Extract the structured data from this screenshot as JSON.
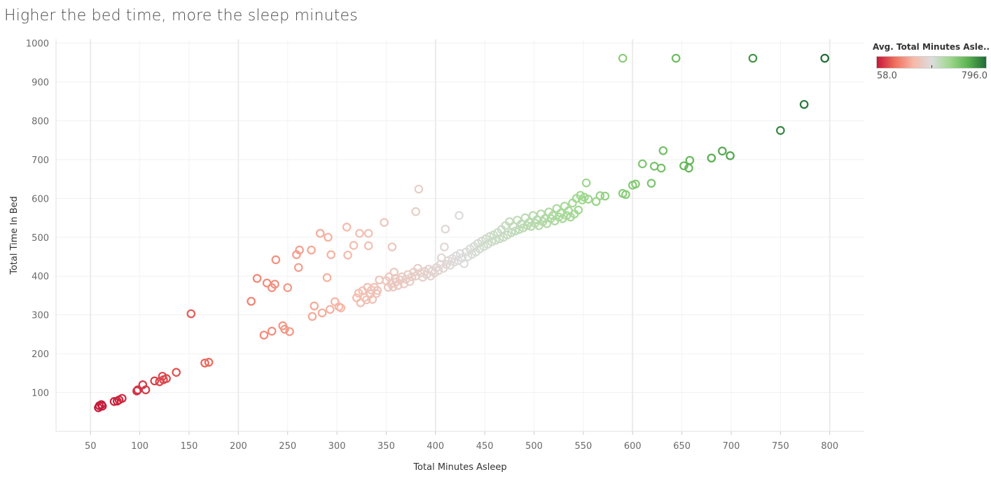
{
  "title": "Higher the bed time, more the sleep minutes",
  "legend": {
    "title": "Avg. Total Minutes Asle..",
    "min_label": "58.0",
    "max_label": "796.0",
    "colors": [
      "#c4183a",
      "#f06f5c",
      "#f7b8a8",
      "#dcdcdc",
      "#9fd88e",
      "#5db352",
      "#1f6b35"
    ]
  },
  "chart_data": {
    "type": "scatter",
    "title": "Higher the bed time, more the sleep minutes",
    "xlabel": "Total Minutes Asleep",
    "ylabel": "Total Time In Bed",
    "xlim": [
      15,
      835
    ],
    "ylim": [
      0,
      1010
    ],
    "xticks": [
      50,
      100,
      150,
      200,
      250,
      300,
      350,
      400,
      450,
      500,
      550,
      600,
      650,
      700,
      750,
      800
    ],
    "yticks": [
      100,
      200,
      300,
      400,
      500,
      600,
      700,
      800,
      900,
      1000
    ],
    "color_by": "Avg. Total Minutes Asleep",
    "color_range": [
      58,
      796
    ],
    "grid": true,
    "legend_position": "top-right",
    "points": [
      [
        58,
        61
      ],
      [
        59,
        66
      ],
      [
        61,
        69
      ],
      [
        62,
        65
      ],
      [
        74,
        77
      ],
      [
        77,
        78
      ],
      [
        79,
        81
      ],
      [
        82,
        85
      ],
      [
        97,
        104
      ],
      [
        98,
        107
      ],
      [
        103,
        120
      ],
      [
        106,
        107
      ],
      [
        115,
        130
      ],
      [
        120,
        128
      ],
      [
        123,
        142
      ],
      [
        124,
        133
      ],
      [
        127,
        136
      ],
      [
        137,
        152
      ],
      [
        152,
        303
      ],
      [
        166,
        176
      ],
      [
        170,
        178
      ],
      [
        213,
        335
      ],
      [
        219,
        394
      ],
      [
        226,
        248
      ],
      [
        229,
        382
      ],
      [
        234,
        258
      ],
      [
        234,
        370
      ],
      [
        237,
        379
      ],
      [
        238,
        442
      ],
      [
        245,
        272
      ],
      [
        247,
        263
      ],
      [
        250,
        370
      ],
      [
        252,
        257
      ],
      [
        259,
        455
      ],
      [
        261,
        422
      ],
      [
        262,
        467
      ],
      [
        274,
        467
      ],
      [
        275,
        296
      ],
      [
        277,
        323
      ],
      [
        283,
        510
      ],
      [
        285,
        305
      ],
      [
        290,
        396
      ],
      [
        291,
        500
      ],
      [
        293,
        314
      ],
      [
        294,
        455
      ],
      [
        298,
        334
      ],
      [
        302,
        321
      ],
      [
        304,
        318
      ],
      [
        310,
        526
      ],
      [
        311,
        454
      ],
      [
        317,
        479
      ],
      [
        320,
        344
      ],
      [
        322,
        356
      ],
      [
        323,
        510
      ],
      [
        324,
        331
      ],
      [
        326,
        362
      ],
      [
        328,
        345
      ],
      [
        330,
        339
      ],
      [
        331,
        371
      ],
      [
        332,
        478
      ],
      [
        332,
        510
      ],
      [
        334,
        354
      ],
      [
        335,
        364
      ],
      [
        336,
        340
      ],
      [
        338,
        371
      ],
      [
        340,
        355
      ],
      [
        341,
        363
      ],
      [
        343,
        390
      ],
      [
        348,
        538
      ],
      [
        350,
        388
      ],
      [
        352,
        371
      ],
      [
        353,
        398
      ],
      [
        355,
        380
      ],
      [
        356,
        475
      ],
      [
        357,
        372
      ],
      [
        358,
        410
      ],
      [
        359,
        394
      ],
      [
        360,
        385
      ],
      [
        362,
        376
      ],
      [
        364,
        390
      ],
      [
        366,
        398
      ],
      [
        368,
        380
      ],
      [
        370,
        392
      ],
      [
        372,
        404
      ],
      [
        374,
        386
      ],
      [
        376,
        398
      ],
      [
        378,
        410
      ],
      [
        380,
        566
      ],
      [
        380,
        400
      ],
      [
        382,
        420
      ],
      [
        383,
        624
      ],
      [
        385,
        408
      ],
      [
        387,
        397
      ],
      [
        389,
        412
      ],
      [
        391,
        404
      ],
      [
        393,
        418
      ],
      [
        395,
        400
      ],
      [
        397,
        414
      ],
      [
        399,
        408
      ],
      [
        401,
        422
      ],
      [
        403,
        414
      ],
      [
        405,
        430
      ],
      [
        406,
        447
      ],
      [
        408,
        420
      ],
      [
        409,
        475
      ],
      [
        410,
        521
      ],
      [
        411,
        430
      ],
      [
        413,
        440
      ],
      [
        415,
        428
      ],
      [
        417,
        445
      ],
      [
        419,
        436
      ],
      [
        421,
        452
      ],
      [
        423,
        440
      ],
      [
        424,
        556
      ],
      [
        425,
        458
      ],
      [
        427,
        446
      ],
      [
        429,
        432
      ],
      [
        431,
        462
      ],
      [
        433,
        450
      ],
      [
        435,
        470
      ],
      [
        437,
        456
      ],
      [
        439,
        476
      ],
      [
        441,
        462
      ],
      [
        443,
        484
      ],
      [
        445,
        470
      ],
      [
        447,
        490
      ],
      [
        449,
        476
      ],
      [
        451,
        496
      ],
      [
        453,
        482
      ],
      [
        455,
        502
      ],
      [
        457,
        488
      ],
      [
        459,
        506
      ],
      [
        461,
        492
      ],
      [
        463,
        512
      ],
      [
        465,
        496
      ],
      [
        467,
        520
      ],
      [
        469,
        500
      ],
      [
        471,
        530
      ],
      [
        473,
        506
      ],
      [
        475,
        540
      ],
      [
        477,
        512
      ],
      [
        479,
        528
      ],
      [
        481,
        516
      ],
      [
        483,
        544
      ],
      [
        485,
        520
      ],
      [
        487,
        534
      ],
      [
        489,
        524
      ],
      [
        491,
        550
      ],
      [
        493,
        530
      ],
      [
        495,
        538
      ],
      [
        497,
        528
      ],
      [
        499,
        556
      ],
      [
        501,
        536
      ],
      [
        503,
        545
      ],
      [
        505,
        530
      ],
      [
        507,
        560
      ],
      [
        509,
        540
      ],
      [
        511,
        548
      ],
      [
        513,
        535
      ],
      [
        515,
        565
      ],
      [
        517,
        548
      ],
      [
        519,
        556
      ],
      [
        521,
        542
      ],
      [
        523,
        574
      ],
      [
        525,
        552
      ],
      [
        527,
        562
      ],
      [
        529,
        548
      ],
      [
        531,
        580
      ],
      [
        533,
        556
      ],
      [
        535,
        568
      ],
      [
        537,
        552
      ],
      [
        539,
        588
      ],
      [
        541,
        560
      ],
      [
        543,
        600
      ],
      [
        545,
        570
      ],
      [
        547,
        608
      ],
      [
        549,
        596
      ],
      [
        551,
        603
      ],
      [
        553,
        640
      ],
      [
        555,
        598
      ],
      [
        563,
        592
      ],
      [
        567,
        607
      ],
      [
        572,
        606
      ],
      [
        590,
        613
      ],
      [
        593,
        610
      ],
      [
        600,
        634
      ],
      [
        603,
        637
      ],
      [
        610,
        689
      ],
      [
        619,
        639
      ],
      [
        622,
        683
      ],
      [
        629,
        678
      ],
      [
        631,
        723
      ],
      [
        652,
        684
      ],
      [
        657,
        678
      ],
      [
        658,
        698
      ],
      [
        680,
        704
      ],
      [
        691,
        722
      ],
      [
        699,
        710
      ],
      [
        590,
        961
      ],
      [
        644,
        961
      ],
      [
        722,
        961
      ],
      [
        795,
        961
      ],
      [
        750,
        775
      ],
      [
        774,
        842
      ]
    ]
  }
}
